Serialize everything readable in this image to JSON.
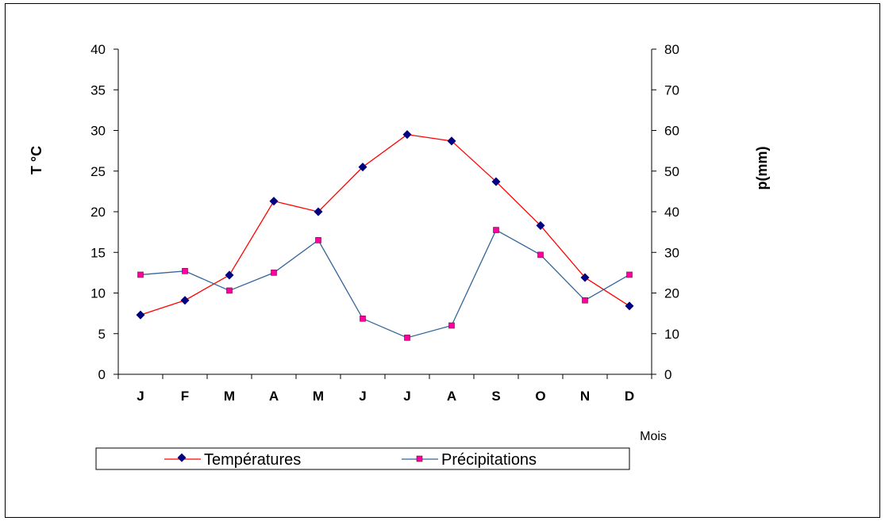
{
  "chart_data": {
    "type": "line",
    "categories": [
      "J",
      "F",
      "M",
      "A",
      "M",
      "J",
      "J",
      "A",
      "S",
      "O",
      "N",
      "D"
    ],
    "series": [
      {
        "name": "Températures",
        "axis": "left",
        "values": [
          7.3,
          9.1,
          12.2,
          21.3,
          20.0,
          25.5,
          29.5,
          28.7,
          23.7,
          18.3,
          11.9,
          8.4
        ],
        "line_color": "#ff0000",
        "marker": "diamond",
        "marker_color": "#000080"
      },
      {
        "name": "Précipitations",
        "axis": "right",
        "values": [
          24.5,
          25.4,
          20.6,
          25.0,
          33.0,
          13.7,
          9.0,
          12.0,
          35.5,
          29.4,
          18.2,
          24.5
        ],
        "line_color": "#336699",
        "marker": "square",
        "marker_color": "#ff00a0"
      }
    ],
    "ylabel": "T °C",
    "y2label": "p(mm)",
    "xlabel": "Mois",
    "ylim": [
      0,
      40
    ],
    "y2lim": [
      0,
      80
    ],
    "yticks": [
      "0",
      "5",
      "10",
      "15",
      "20",
      "25",
      "30",
      "35",
      "40"
    ],
    "y2ticks": [
      "0",
      "10",
      "20",
      "30",
      "40",
      "50",
      "60",
      "70",
      "80"
    ],
    "grid": false,
    "legend_position": "bottom"
  }
}
